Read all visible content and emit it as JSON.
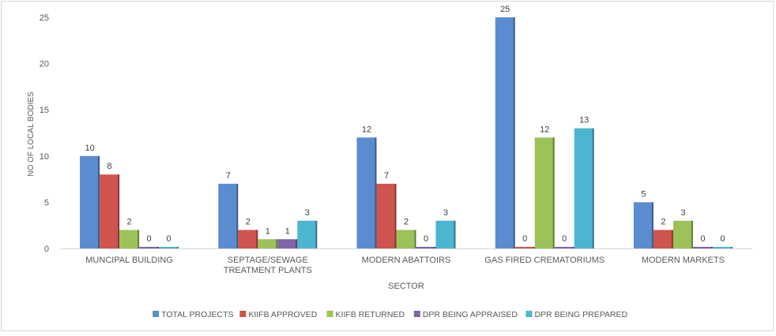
{
  "chart_data": {
    "type": "bar",
    "title": "",
    "xlabel": "SECTOR",
    "ylabel": "NO OF LOCAL BODIES",
    "ylim": [
      0,
      25
    ],
    "yticks": [
      0,
      5,
      10,
      15,
      20,
      25
    ],
    "grid": false,
    "legend_position": "bottom",
    "categories": [
      [
        "MUNCIPAL BUILDING"
      ],
      [
        "SEPTAGE/SEWAGE",
        "TREATMENT PLANTS"
      ],
      [
        "MODERN ABATTOIRS"
      ],
      [
        "GAS FIRED CREMATORIUMS"
      ],
      [
        "MODERN MARKETS"
      ]
    ],
    "series": [
      {
        "name": "TOTAL PROJECTS",
        "color": "#5b8ccf",
        "values": [
          10,
          7,
          12,
          25,
          5
        ]
      },
      {
        "name": "KIIFB APPROVED",
        "color": "#cf5450",
        "values": [
          8,
          2,
          7,
          0,
          2
        ]
      },
      {
        "name": "KIIFB RETURNED",
        "color": "#9cc25a",
        "values": [
          2,
          1,
          2,
          12,
          3
        ]
      },
      {
        "name": "DPR BEING APPRAISED",
        "color": "#8165a7",
        "values": [
          0,
          1,
          0,
          0,
          0
        ]
      },
      {
        "name": "DPR BEING PREPARED",
        "color": "#4cb5cf",
        "values": [
          0,
          3,
          3,
          13,
          0
        ]
      }
    ]
  }
}
